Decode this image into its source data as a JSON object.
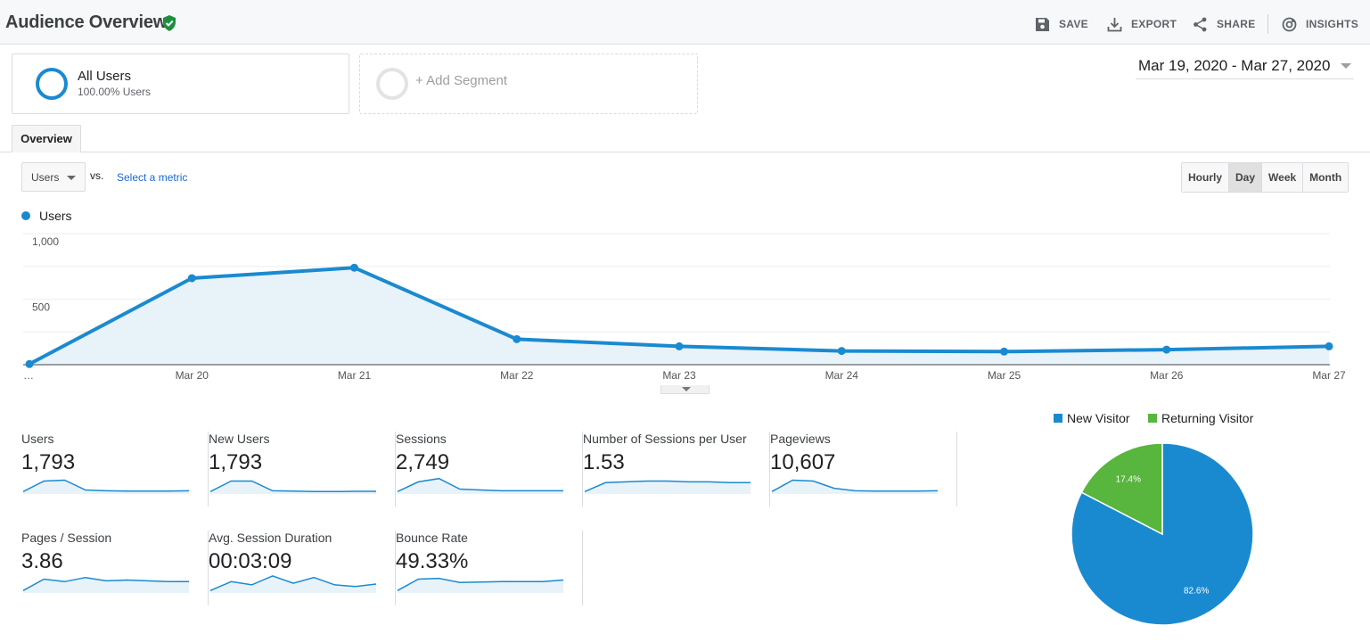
{
  "header": {
    "title": "Audience Overview",
    "actions": {
      "save": "SAVE",
      "export": "EXPORT",
      "share": "SHARE",
      "insights": "INSIGHTS"
    }
  },
  "segments": {
    "active": {
      "name": "All Users",
      "sub": "100.00% Users"
    },
    "add_label": "+ Add Segment"
  },
  "date_range": "Mar 19, 2020 - Mar 27, 2020",
  "tabs": {
    "overview": "Overview"
  },
  "controls": {
    "metric_select": "Users",
    "vs": "vs.",
    "select_metric": "Select a metric",
    "granularity": [
      "Hourly",
      "Day",
      "Week",
      "Month"
    ],
    "granularity_active": "Day"
  },
  "chart_data": [
    {
      "type": "area",
      "legend": "Users",
      "y_ticks": [
        "1,000",
        "500"
      ],
      "ylim": [
        0,
        1000
      ],
      "x_labels": [
        "…",
        "Mar 20",
        "Mar 21",
        "Mar 22",
        "Mar 23",
        "Mar 24",
        "Mar 25",
        "Mar 26",
        "Mar 27"
      ],
      "series": [
        {
          "name": "Users",
          "values": [
            5,
            660,
            740,
            195,
            140,
            105,
            100,
            115,
            140
          ]
        }
      ],
      "color": "#1a8ad0",
      "fill": "#e8f2f9"
    },
    {
      "type": "pie",
      "legend": [
        "New Visitor",
        "Returning Visitor"
      ],
      "values": [
        82.6,
        17.4
      ],
      "labels": [
        "82.6%",
        "17.4%"
      ],
      "colors": [
        "#1a8ad0",
        "#58b53d"
      ]
    }
  ],
  "metrics": [
    {
      "name": "Users",
      "value": "1,793",
      "spark": [
        3,
        16,
        17,
        5,
        4,
        3.5,
        3.5,
        3.5,
        4
      ]
    },
    {
      "name": "New Users",
      "value": "1,793",
      "spark": [
        3,
        16,
        16,
        4,
        3.5,
        3,
        3,
        3.3,
        3.3
      ]
    },
    {
      "name": "Sessions",
      "value": "2,749",
      "spark": [
        3,
        15,
        19,
        6,
        5,
        4,
        4,
        4,
        4
      ]
    },
    {
      "name": "Number of Sessions per User",
      "value": "1.53",
      "spark": [
        3,
        14,
        15,
        16,
        16,
        15,
        15,
        14,
        14
      ]
    },
    {
      "name": "Pageviews",
      "value": "10,607",
      "spark": [
        3,
        17,
        16,
        7,
        4,
        3.5,
        3.5,
        3.5,
        4
      ]
    },
    {
      "name": "Pages / Session",
      "value": "3.86",
      "spark": [
        3,
        17,
        14,
        19,
        15,
        16,
        15,
        14,
        14
      ]
    },
    {
      "name": "Avg. Session Duration",
      "value": "00:03:09",
      "spark": [
        3,
        14,
        10,
        21,
        12,
        19,
        10,
        8,
        11
      ]
    },
    {
      "name": "Bounce Rate",
      "value": "49.33%",
      "spark": [
        3,
        17,
        18,
        13,
        13.5,
        14,
        14,
        14,
        16
      ]
    }
  ]
}
